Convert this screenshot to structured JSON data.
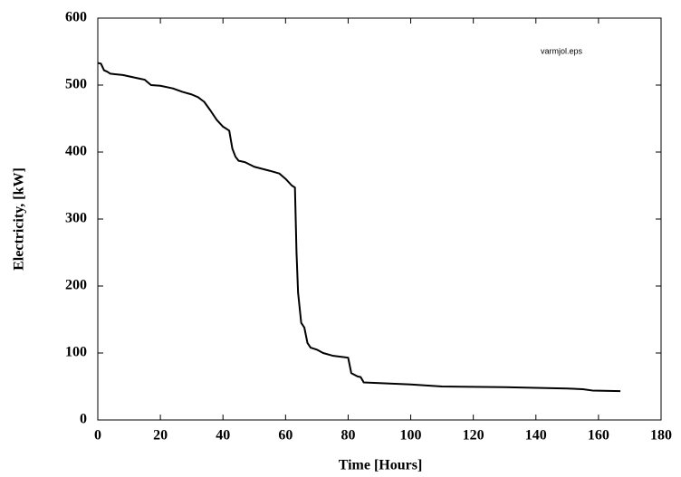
{
  "chart_data": {
    "type": "line",
    "x_label": "Time [Hours]",
    "y_label": "Electricity, [kW]",
    "annotation": "varmjol.eps",
    "x": [
      0,
      1,
      2,
      3,
      4,
      8,
      10,
      13,
      15,
      17,
      20,
      24,
      27,
      30,
      32,
      34,
      36,
      38,
      40,
      42,
      43,
      44,
      45,
      47,
      50,
      55,
      58,
      60,
      62,
      63,
      63.5,
      64,
      65,
      66,
      67,
      68,
      70,
      72,
      75,
      80,
      81,
      83,
      84,
      85,
      90,
      100,
      110,
      130,
      150,
      155,
      158,
      167
    ],
    "values": [
      533,
      532,
      522,
      520,
      517,
      515,
      513,
      510,
      508,
      500,
      499,
      495,
      490,
      486,
      482,
      475,
      462,
      448,
      438,
      432,
      405,
      393,
      387,
      385,
      378,
      372,
      368,
      360,
      350,
      347,
      250,
      190,
      145,
      138,
      115,
      108,
      105,
      100,
      96,
      93,
      70,
      65,
      64,
      56,
      55,
      53,
      50,
      49,
      47,
      46,
      44,
      43
    ],
    "color": "#000000",
    "xlim": [
      0,
      180
    ],
    "xticks": [
      0,
      20,
      40,
      60,
      80,
      100,
      120,
      140,
      160,
      180
    ],
    "ylim": [
      0,
      600
    ],
    "yticks": [
      0,
      100,
      200,
      300,
      400,
      500,
      600
    ]
  }
}
